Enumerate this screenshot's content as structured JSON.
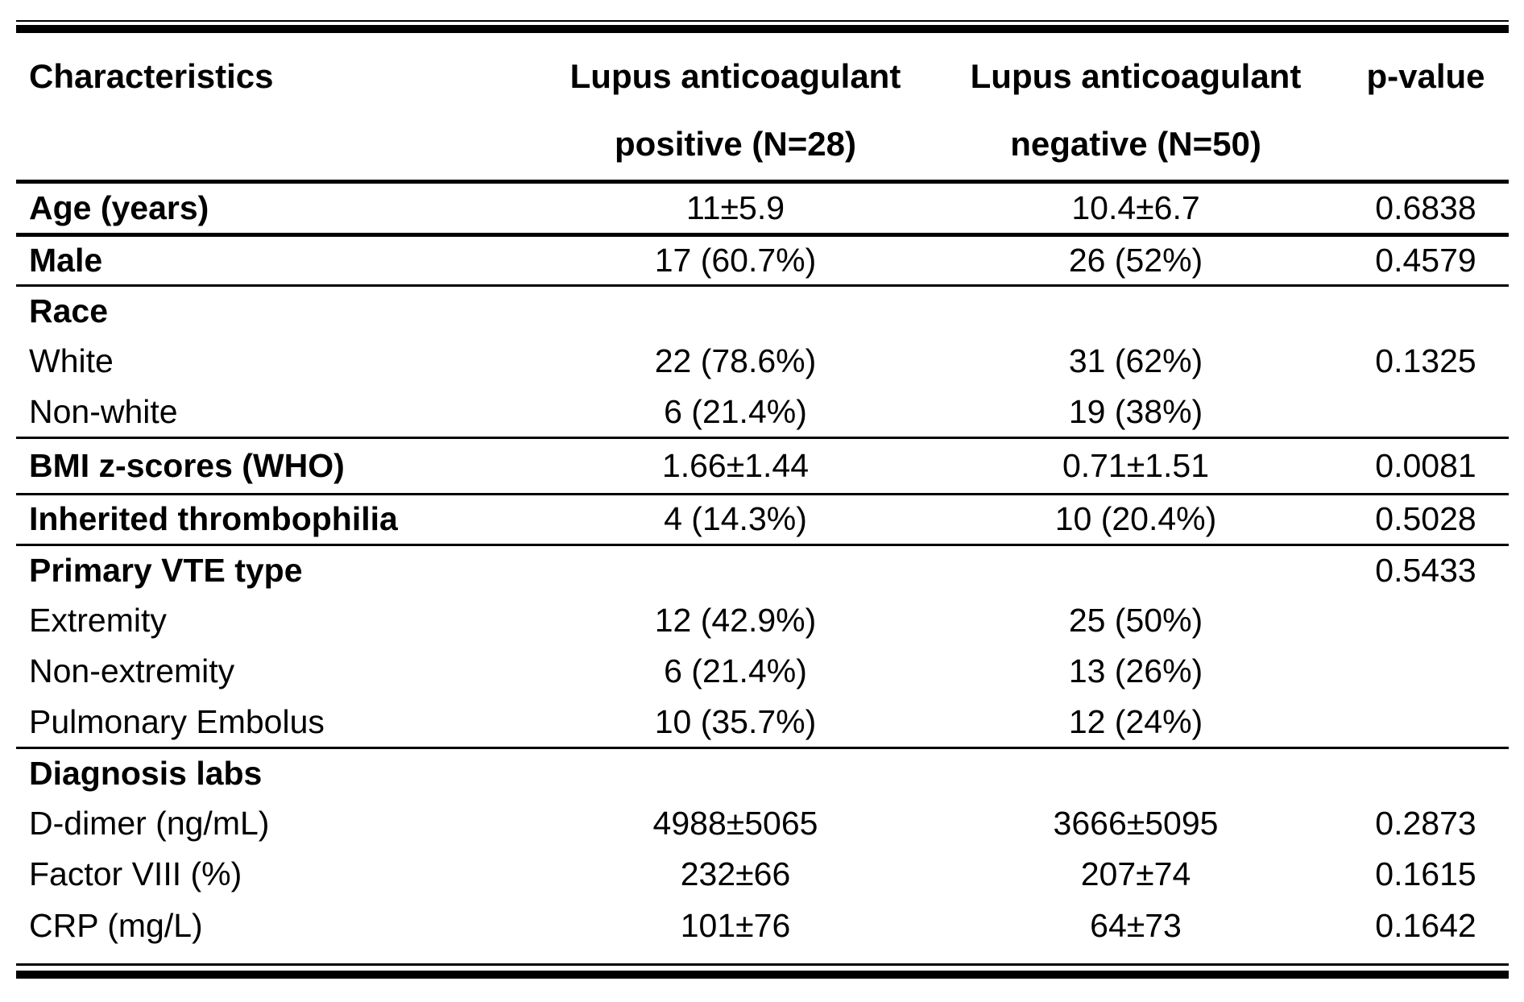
{
  "page": {
    "background": "#ffffff",
    "text_color": "#000000",
    "rule_color": "#000000"
  },
  "table": {
    "header": {
      "characteristics": "Characteristics",
      "group_positive_line1": "Lupus anticoagulant",
      "group_positive_line2": "positive (N=28)",
      "group_negative_line1": "Lupus anticoagulant",
      "group_negative_line2": "negative (N=50)",
      "pvalue": "p-value"
    },
    "rows": [
      {
        "label": "Age (years)",
        "bold": true,
        "lap_positive": "11±5.9",
        "lap_negative": "10.4±6.7",
        "p": "0.6838"
      },
      {
        "label": "Male",
        "bold": true,
        "lap_positive": "17 (60.7%)",
        "lap_negative": "26 (52%)",
        "p": "0.4579"
      },
      {
        "label": "Race",
        "bold": true,
        "lap_positive": "",
        "lap_negative": "",
        "p": ""
      },
      {
        "label": "White",
        "bold": false,
        "lap_positive": "22 (78.6%)",
        "lap_negative": "31 (62%)",
        "p": "0.1325"
      },
      {
        "label": "Non-white",
        "bold": false,
        "lap_positive": "6 (21.4%)",
        "lap_negative": "19 (38%)",
        "p": ""
      },
      {
        "label": "BMI z-scores (WHO)",
        "bold": true,
        "lap_positive": "1.66±1.44",
        "lap_negative": "0.71±1.51",
        "p": "0.0081"
      },
      {
        "label": "Inherited thrombophilia",
        "bold": true,
        "lap_positive": "4 (14.3%)",
        "lap_negative": "10 (20.4%)",
        "p": "0.5028"
      },
      {
        "label": "Primary VTE type",
        "bold": true,
        "lap_positive": "",
        "lap_negative": "",
        "p": "0.5433"
      },
      {
        "label": "Extremity",
        "bold": false,
        "lap_positive": "12 (42.9%)",
        "lap_negative": "25 (50%)",
        "p": ""
      },
      {
        "label": "Non-extremity",
        "bold": false,
        "lap_positive": "6 (21.4%)",
        "lap_negative": "13 (26%)",
        "p": ""
      },
      {
        "label": "Pulmonary Embolus",
        "bold": false,
        "lap_positive": "10 (35.7%)",
        "lap_negative": "12 (24%)",
        "p": ""
      },
      {
        "label": "Diagnosis labs",
        "bold": true,
        "lap_positive": "",
        "lap_negative": "",
        "p": ""
      },
      {
        "label": "D-dimer (ng/mL)",
        "bold": false,
        "lap_positive": "4988±5065",
        "lap_negative": "3666±5095",
        "p": "0.2873"
      },
      {
        "label": "Factor VIII (%)",
        "bold": false,
        "lap_positive": "232±66",
        "lap_negative": "207±74",
        "p": "0.1615"
      },
      {
        "label": "CRP (mg/L)",
        "bold": false,
        "lap_positive": "101±76",
        "lap_negative": "64±73",
        "p": "0.1642"
      }
    ]
  }
}
